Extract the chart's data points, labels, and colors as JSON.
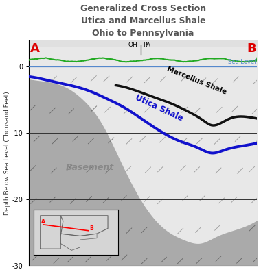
{
  "title_line1": "Generalized Cross Section",
  "title_line2": "Utica and Marcellus Shale",
  "title_line3": "Ohio to Pennsylvania",
  "title_color": "#555555",
  "ylabel": "Depth Below Sea Level (Thousand Feet)",
  "ylim": [
    -30,
    4
  ],
  "xlim": [
    0,
    100
  ],
  "bg_white": "#ffffff",
  "bg_light_gray": "#e0e0e0",
  "bg_medium_gray": "#c8c8c8",
  "sea_level_color": "#5588cc",
  "surface_color": "#22aa22",
  "marcellus_color": "#111111",
  "utica_color": "#1111cc",
  "basement_dark": "#aaaaaa",
  "basement_light": "#d8d8d8",
  "label_color_A": "#dd0000",
  "label_color_B": "#dd0000",
  "basement_x": [
    0,
    8,
    16,
    24,
    32,
    40,
    50,
    60,
    68,
    75,
    82,
    90,
    100
  ],
  "basement_y": [
    -1.8,
    -2.2,
    -3.0,
    -5.0,
    -8.5,
    -14.0,
    -20.5,
    -24.5,
    -26.0,
    -26.5,
    -25.5,
    -24.5,
    -23.0
  ],
  "utica_x": [
    0,
    5,
    10,
    18,
    26,
    34,
    42,
    50,
    58,
    66,
    74,
    80,
    86,
    92,
    100
  ],
  "utica_y": [
    -1.5,
    -1.8,
    -2.2,
    -2.8,
    -3.6,
    -4.8,
    -6.2,
    -8.0,
    -9.8,
    -11.2,
    -12.2,
    -13.0,
    -12.5,
    -12.0,
    -11.5
  ],
  "marc_x": [
    38,
    46,
    54,
    62,
    70,
    76,
    80,
    84,
    88,
    94,
    100
  ],
  "marc_y": [
    -2.8,
    -3.5,
    -4.5,
    -5.5,
    -6.8,
    -8.0,
    -8.8,
    -8.5,
    -7.8,
    -7.5,
    -7.8
  ],
  "topo_seed": 10,
  "yticks": [
    0,
    -10,
    -20,
    -30
  ]
}
